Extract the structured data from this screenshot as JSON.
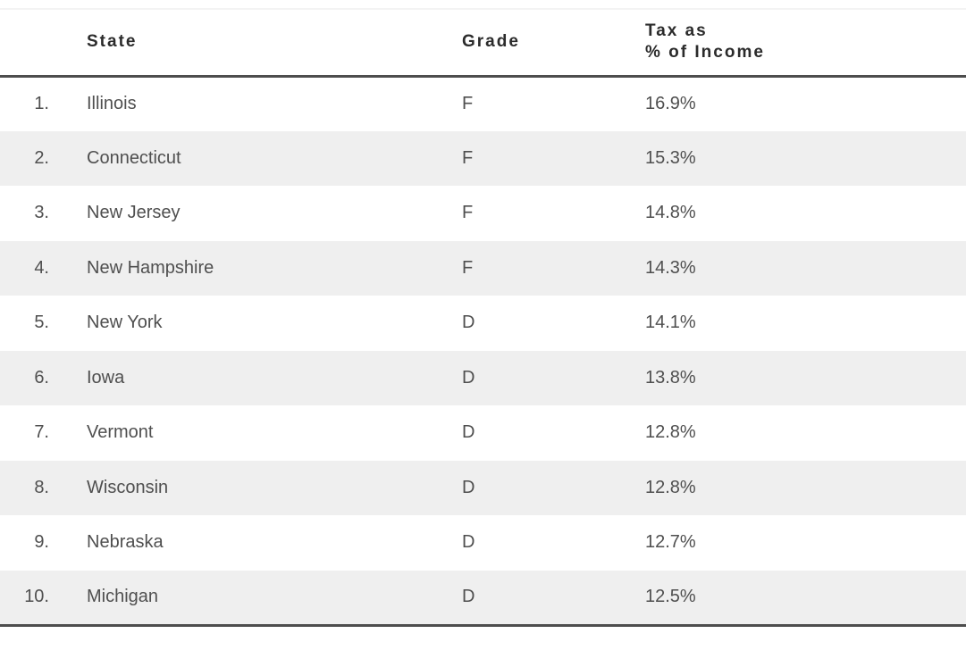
{
  "chart_data": {
    "type": "table",
    "title": "",
    "header": {
      "rank": "",
      "state": "State",
      "grade": "Grade",
      "tax": "Tax as\n% of Income"
    },
    "rows": [
      {
        "rank": "1.",
        "state": "Illinois",
        "grade": "F",
        "tax": "16.9%"
      },
      {
        "rank": "2.",
        "state": "Connecticut",
        "grade": "F",
        "tax": "15.3%"
      },
      {
        "rank": "3.",
        "state": "New Jersey",
        "grade": "F",
        "tax": "14.8%"
      },
      {
        "rank": "4.",
        "state": "New Hampshire",
        "grade": "F",
        "tax": "14.3%"
      },
      {
        "rank": "5.",
        "state": "New York",
        "grade": "D",
        "tax": "14.1%"
      },
      {
        "rank": "6.",
        "state": "Iowa",
        "grade": "D",
        "tax": "13.8%"
      },
      {
        "rank": "7.",
        "state": "Vermont",
        "grade": "D",
        "tax": "12.8%"
      },
      {
        "rank": "8.",
        "state": "Wisconsin",
        "grade": "D",
        "tax": "12.8%"
      },
      {
        "rank": "9.",
        "state": "Nebraska",
        "grade": "D",
        "tax": "12.7%"
      },
      {
        "rank": "10.",
        "state": "Michigan",
        "grade": "D",
        "tax": "12.5%"
      }
    ],
    "tax_pct_values": [
      16.9,
      15.3,
      14.8,
      14.3,
      14.1,
      13.8,
      12.8,
      12.8,
      12.7,
      12.5
    ],
    "grades": [
      "F",
      "F",
      "F",
      "F",
      "D",
      "D",
      "D",
      "D",
      "D",
      "D"
    ]
  },
  "colors": {
    "row_stripe": "#efefef",
    "rule_dark": "#4d4d4d",
    "rule_faint_top": "#f3f3f3",
    "header_text": "#2b2b2b",
    "body_text": "#4f4f4f",
    "background": "#ffffff"
  }
}
